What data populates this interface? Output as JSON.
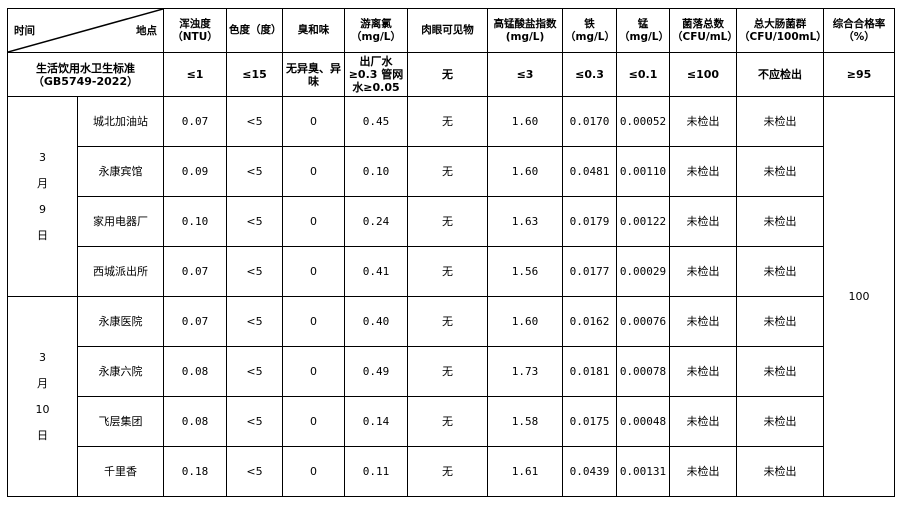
{
  "header": {
    "corner_time": "时间",
    "corner_place": "地点",
    "columns": [
      "浑浊度（NTU）",
      "色度（度）",
      "臭和味",
      "游离氯（mg/L）",
      "肉眼可见物",
      "高锰酸盐指数(mg/L)",
      "铁（mg/L）",
      "锰（mg/L）",
      "菌落总数（CFU/mL）",
      "总大肠菌群（CFU/100mL）",
      "综合合格率（%）"
    ]
  },
  "standard": {
    "label": "生活饮用水卫生标准（GB5749-2022）",
    "values": [
      "≤1",
      "≤15",
      "无异臭、异味",
      "出厂水≥0.3 管网水≥0.05",
      "无",
      "≤3",
      "≤0.3",
      "≤0.1",
      "≤100",
      "不应检出",
      "≥95"
    ]
  },
  "overall_rate": "100",
  "groups": [
    {
      "date": [
        "3",
        "月",
        "9",
        "日"
      ],
      "rows": [
        {
          "site": "城北加油站",
          "values": [
            "0.07",
            "<5",
            "0",
            "0.45",
            "无",
            "1.60",
            "0.0170",
            "0.00052",
            "未检出",
            "未检出"
          ]
        },
        {
          "site": "永康宾馆",
          "values": [
            "0.09",
            "<5",
            "0",
            "0.10",
            "无",
            "1.60",
            "0.0481",
            "0.00110",
            "未检出",
            "未检出"
          ]
        },
        {
          "site": "家用电器厂",
          "values": [
            "0.10",
            "<5",
            "0",
            "0.24",
            "无",
            "1.63",
            "0.0179",
            "0.00122",
            "未检出",
            "未检出"
          ]
        },
        {
          "site": "西城派出所",
          "values": [
            "0.07",
            "<5",
            "0",
            "0.41",
            "无",
            "1.56",
            "0.0177",
            "0.00029",
            "未检出",
            "未检出"
          ]
        }
      ]
    },
    {
      "date": [
        "3",
        "月",
        "10",
        "日"
      ],
      "rows": [
        {
          "site": "永康医院",
          "values": [
            "0.07",
            "<5",
            "0",
            "0.40",
            "无",
            "1.60",
            "0.0162",
            "0.00076",
            "未检出",
            "未检出"
          ]
        },
        {
          "site": "永康六院",
          "values": [
            "0.08",
            "<5",
            "0",
            "0.49",
            "无",
            "1.73",
            "0.0181",
            "0.00078",
            "未检出",
            "未检出"
          ]
        },
        {
          "site": "飞层集团",
          "values": [
            "0.08",
            "<5",
            "0",
            "0.14",
            "无",
            "1.58",
            "0.0175",
            "0.00048",
            "未检出",
            "未检出"
          ]
        },
        {
          "site": "千里香",
          "values": [
            "0.18",
            "<5",
            "0",
            "0.11",
            "无",
            "1.61",
            "0.0439",
            "0.00131",
            "未检出",
            "未检出"
          ]
        }
      ]
    }
  ]
}
